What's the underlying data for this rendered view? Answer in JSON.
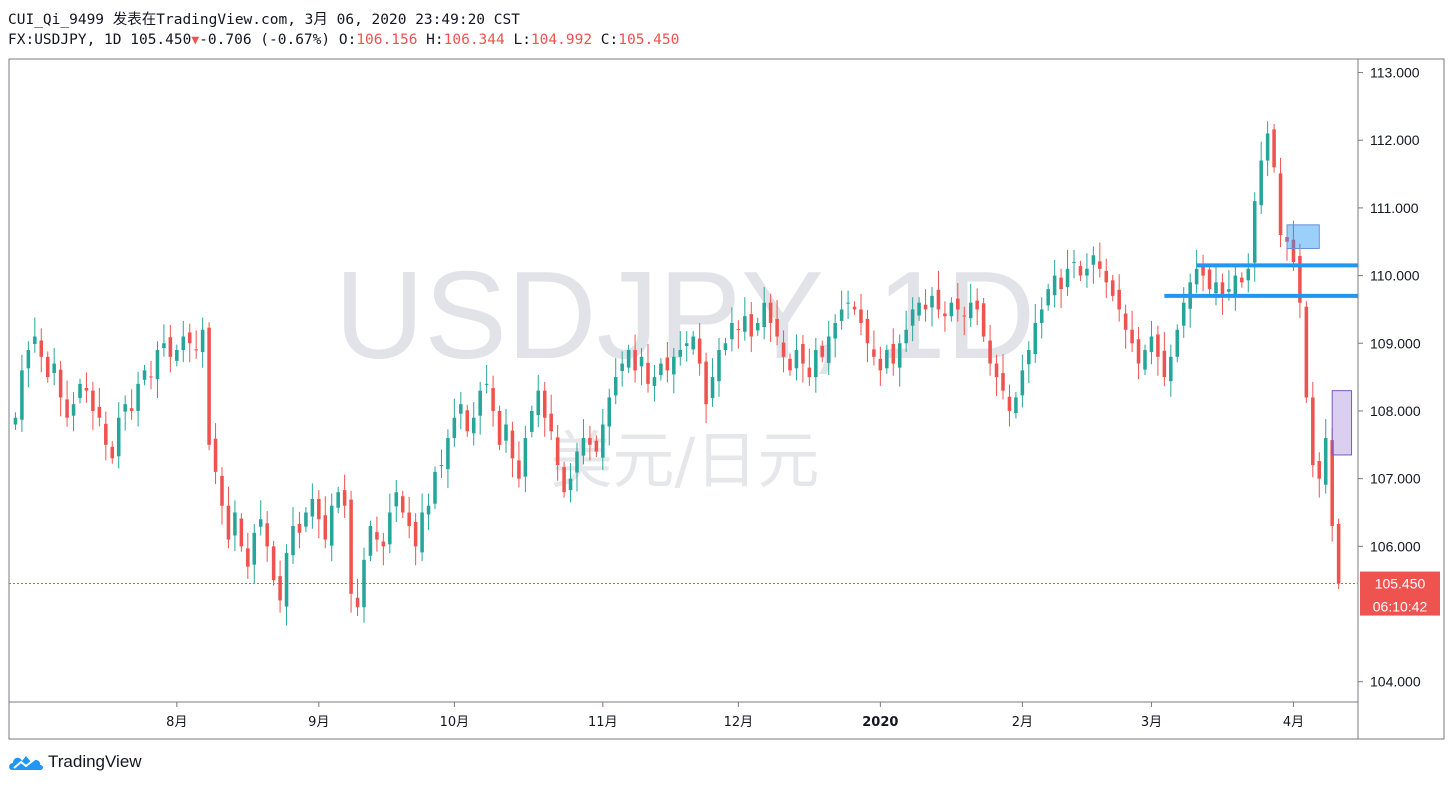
{
  "header": {
    "publisher_line": "CUI_Qi_9499 发表在TradingView.com, 3月 06, 2020 23:49:20 CST",
    "symbol": "FX:USDJPY, 1D",
    "last": "105.450",
    "change": "-0.706 (-0.67%)",
    "o_label": "O:",
    "o_value": "106.156",
    "h_label": "H:",
    "h_value": "106.344",
    "l_label": "L:",
    "l_value": "104.992",
    "c_label": "C:",
    "c_value": "105.450"
  },
  "watermark": {
    "symbol": "USDJPY, 1D",
    "pair_cn": "美元/日元"
  },
  "price_tag": {
    "price": "105.450",
    "countdown": "06:10:42"
  },
  "brand": {
    "name": "TradingView"
  },
  "colors": {
    "up": "#26a69a",
    "down": "#ef5350",
    "level_line": "#2196f3",
    "grid_border": "#787b86"
  },
  "chart_data": {
    "type": "candlestick",
    "symbol": "FX:USDJPY",
    "interval": "1D",
    "y_ticks": [
      "113.000",
      "112.000",
      "111.000",
      "110.000",
      "109.000",
      "108.000",
      "107.000",
      "106.000",
      "104.000"
    ],
    "y_range": [
      103.7,
      113.2
    ],
    "x_ticks": [
      {
        "label": "8月",
        "day": 25,
        "bold": false
      },
      {
        "label": "9月",
        "day": 47,
        "bold": false
      },
      {
        "label": "10月",
        "day": 68,
        "bold": false
      },
      {
        "label": "11月",
        "day": 91,
        "bold": false
      },
      {
        "label": "12月",
        "day": 112,
        "bold": false
      },
      {
        "label": "2020",
        "day": 134,
        "bold": true
      },
      {
        "label": "2月",
        "day": 156,
        "bold": false
      },
      {
        "label": "3月",
        "day": 176,
        "bold": false
      },
      {
        "label": "4月",
        "day": 198,
        "bold": false
      }
    ],
    "x_range": [
      -1,
      208
    ],
    "last_price": 105.45,
    "closes": [
      107.9,
      108.6,
      108.9,
      109.1,
      108.8,
      108.5,
      108.7,
      108.2,
      107.9,
      108.1,
      108.4,
      108.3,
      108.0,
      107.9,
      107.5,
      107.3,
      107.9,
      108.1,
      108.0,
      108.4,
      108.6,
      108.5,
      108.9,
      109.0,
      108.8,
      108.9,
      109.1,
      109.0,
      108.9,
      109.2,
      107.5,
      107.1,
      106.6,
      106.1,
      106.5,
      106.0,
      105.7,
      106.2,
      106.4,
      106.0,
      105.5,
      105.2,
      105.9,
      106.3,
      106.2,
      106.5,
      106.7,
      106.4,
      106.1,
      106.6,
      106.8,
      106.6,
      105.3,
      105.1,
      105.8,
      106.3,
      106.1,
      106.0,
      106.5,
      106.8,
      106.5,
      106.3,
      106.0,
      106.5,
      106.6,
      107.1,
      107.2,
      107.6,
      107.9,
      108.1,
      107.7,
      107.9,
      108.3,
      108.4,
      108.0,
      107.5,
      107.8,
      107.3,
      107.0,
      107.6,
      108.0,
      108.3,
      107.9,
      107.7,
      107.2,
      106.8,
      107.0,
      107.4,
      107.6,
      107.5,
      107.4,
      107.8,
      108.2,
      108.5,
      108.7,
      108.9,
      108.6,
      108.8,
      108.4,
      108.5,
      108.7,
      108.6,
      108.8,
      108.9,
      109.0,
      109.1,
      108.7,
      108.1,
      108.5,
      108.9,
      109.0,
      109.3,
      109.2,
      109.4,
      109.1,
      109.3,
      109.6,
      109.3,
      109.1,
      108.8,
      108.6,
      108.9,
      108.7,
      108.5,
      108.9,
      108.8,
      109.1,
      109.3,
      109.5,
      109.6,
      109.5,
      109.3,
      109.0,
      108.8,
      108.6,
      108.9,
      108.7,
      109.0,
      109.2,
      109.5,
      109.6,
      109.5,
      109.7,
      109.5,
      109.4,
      109.6,
      109.5,
      109.4,
      109.6,
      109.5,
      109.1,
      108.7,
      108.5,
      108.3,
      108.0,
      108.2,
      108.6,
      108.9,
      109.3,
      109.5,
      109.8,
      110.0,
      109.8,
      110.1,
      110.2,
      110.0,
      110.1,
      110.3,
      110.1,
      109.9,
      109.7,
      109.5,
      109.2,
      109.0,
      108.7,
      108.9,
      109.1,
      108.8,
      108.5,
      108.8,
      109.2,
      109.6,
      109.9,
      110.1,
      110.0,
      109.8,
      109.9,
      109.7,
      109.8,
      110.0,
      109.9,
      110.1,
      111.1,
      111.7,
      112.1,
      111.6,
      110.6,
      110.5,
      110.2,
      109.6,
      108.2,
      107.2,
      107.0,
      107.6,
      106.3,
      105.45
    ]
  }
}
